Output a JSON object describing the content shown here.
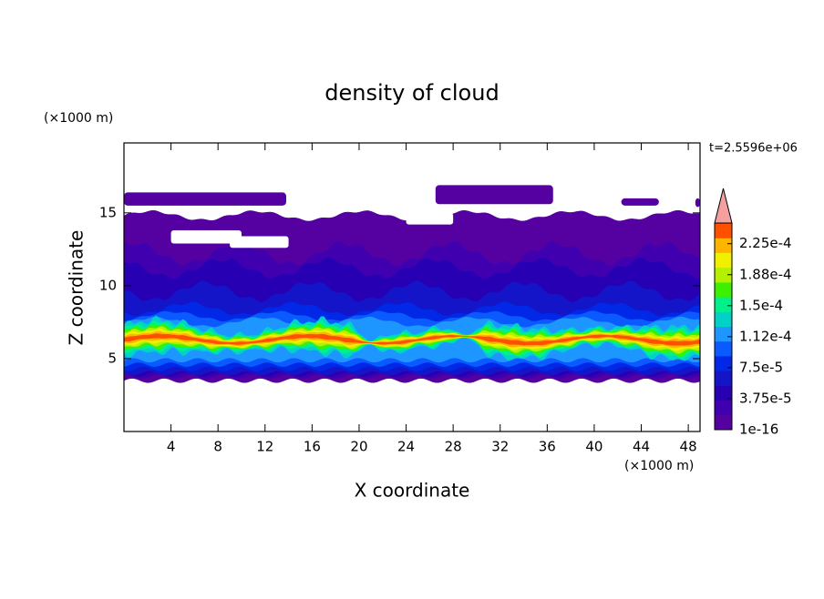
{
  "chart_data": {
    "type": "contour",
    "title": "density of cloud",
    "xlabel": "X coordinate",
    "ylabel": "Z coordinate",
    "x_unit": "(×1000 m)",
    "y_unit": "(×1000 m)",
    "annotation": "t=2.5596e+06",
    "xlim": [
      0,
      49
    ],
    "ylim": [
      0,
      19.8
    ],
    "xticks": [
      4,
      8,
      12,
      16,
      20,
      24,
      28,
      32,
      36,
      40,
      44,
      48
    ],
    "yticks": [
      5,
      10,
      15
    ],
    "colorbar": {
      "clim": [
        0,
        0.00025
      ],
      "colors": [
        "#5500a0",
        "#4000b0",
        "#2800b4",
        "#1414c8",
        "#0028e6",
        "#0a5aff",
        "#1e96ff",
        "#00d2c8",
        "#00f08c",
        "#3cf000",
        "#b4f000",
        "#f0f000",
        "#ffb400",
        "#ff5000"
      ],
      "extend_color": "#f5a0a0",
      "ticks": [
        1e-16,
        {
          "value": 3.75e-05,
          "label": "3.75e-5"
        },
        {
          "value": 7.5e-05,
          "label": "7.5e-5"
        },
        {
          "value": 0.0001125,
          "label": "1.12e-4"
        },
        {
          "value": 0.00015,
          "label": "1.5e-4"
        },
        {
          "value": 0.0001875,
          "label": "1.88e-4"
        },
        {
          "value": 0.000225,
          "label": "2.25e-4"
        }
      ]
    }
  }
}
